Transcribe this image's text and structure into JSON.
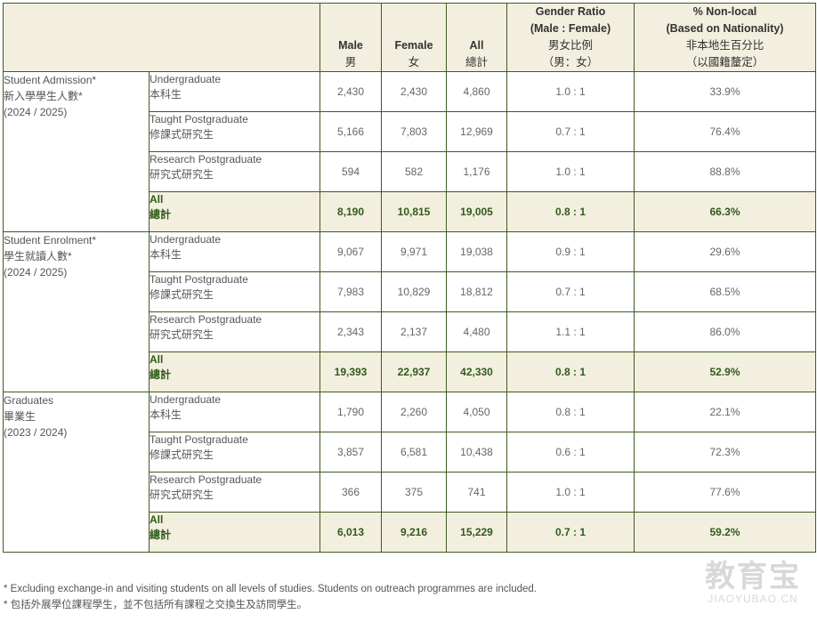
{
  "header": {
    "male_en": "Male",
    "male_zh": "男",
    "female_en": "Female",
    "female_zh": "女",
    "all_en": "All",
    "all_zh": "總計",
    "ratio_en1": "Gender Ratio",
    "ratio_en2": "(Male : Female)",
    "ratio_zh1": "男女比例",
    "ratio_zh2": "（男：女）",
    "nonlocal_en1": "% Non-local",
    "nonlocal_en2": "(Based on Nationality)",
    "nonlocal_zh1": "非本地生百分比",
    "nonlocal_zh2": "（以國籍釐定）"
  },
  "groups": [
    {
      "label_en": "Student Admission*",
      "label_zh": "新入學學生人數*",
      "period": "(2024 / 2025)",
      "rows": [
        {
          "level_en": "Undergraduate",
          "level_zh": "本科生",
          "male": "2,430",
          "female": "2,430",
          "all": "4,860",
          "ratio": "1.0 : 1",
          "nonlocal": "33.9%"
        },
        {
          "level_en": "Taught Postgraduate",
          "level_zh": "修課式研究生",
          "male": "5,166",
          "female": "7,803",
          "all": "12,969",
          "ratio": "0.7 : 1",
          "nonlocal": "76.4%"
        },
        {
          "level_en": "Research Postgraduate",
          "level_zh": "研究式研究生",
          "male": "594",
          "female": "582",
          "all": "1,176",
          "ratio": "1.0 : 1",
          "nonlocal": "88.8%"
        },
        {
          "level_en": "All",
          "level_zh": "總計",
          "male": "8,190",
          "female": "10,815",
          "all": "19,005",
          "ratio": "0.8 : 1",
          "nonlocal": "66.3%"
        }
      ]
    },
    {
      "label_en": "Student Enrolment*",
      "label_zh": "學生就讀人數*",
      "period": "(2024 / 2025)",
      "rows": [
        {
          "level_en": "Undergraduate",
          "level_zh": "本科生",
          "male": "9,067",
          "female": "9,971",
          "all": "19,038",
          "ratio": "0.9 : 1",
          "nonlocal": "29.6%"
        },
        {
          "level_en": "Taught Postgraduate",
          "level_zh": "修課式研究生",
          "male": "7,983",
          "female": "10,829",
          "all": "18,812",
          "ratio": "0.7 : 1",
          "nonlocal": "68.5%"
        },
        {
          "level_en": "Research Postgraduate",
          "level_zh": "研究式研究生",
          "male": "2,343",
          "female": "2,137",
          "all": "4,480",
          "ratio": "1.1 : 1",
          "nonlocal": "86.0%"
        },
        {
          "level_en": "All",
          "level_zh": "總計",
          "male": "19,393",
          "female": "22,937",
          "all": "42,330",
          "ratio": "0.8 : 1",
          "nonlocal": "52.9%"
        }
      ]
    },
    {
      "label_en": "Graduates",
      "label_zh": "畢業生",
      "period": "(2023 / 2024)",
      "rows": [
        {
          "level_en": "Undergraduate",
          "level_zh": "本科生",
          "male": "1,790",
          "female": "2,260",
          "all": "4,050",
          "ratio": "0.8 : 1",
          "nonlocal": "22.1%"
        },
        {
          "level_en": "Taught Postgraduate",
          "level_zh": "修課式研究生",
          "male": "3,857",
          "female": "6,581",
          "all": "10,438",
          "ratio": "0.6 : 1",
          "nonlocal": "72.3%"
        },
        {
          "level_en": "Research Postgraduate",
          "level_zh": "研究式研究生",
          "male": "366",
          "female": "375",
          "all": "741",
          "ratio": "1.0 : 1",
          "nonlocal": "77.6%"
        },
        {
          "level_en": "All",
          "level_zh": "總計",
          "male": "6,013",
          "female": "9,216",
          "all": "15,229",
          "ratio": "0.7 : 1",
          "nonlocal": "59.2%"
        }
      ]
    }
  ],
  "notes": [
    "* Excluding exchange-in and visiting students on all levels of studies. Students on outreach programmes are included.",
    "* 包括外展學位課程學生，並不包括所有課程之交換生及訪問學生。"
  ],
  "watermark": {
    "cn": "教育宝",
    "en": "JIAOYUBAO.CN"
  }
}
